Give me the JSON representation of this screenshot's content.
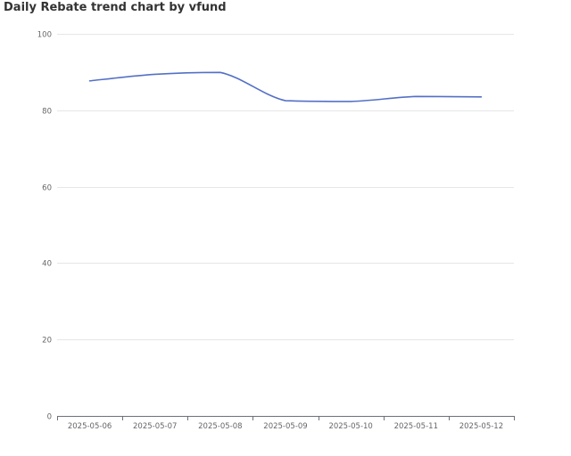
{
  "chart_data": {
    "type": "line",
    "title": "Daily Rebate trend chart by vfund",
    "xlabel": "",
    "ylabel": "",
    "categories": [
      "2025-05-06",
      "2025-05-07",
      "2025-05-08",
      "2025-05-09",
      "2025-05-10",
      "2025-05-11",
      "2025-05-12"
    ],
    "series": [
      {
        "values": [
          87.7,
          89.4,
          89.9,
          82.5,
          82.3,
          83.6,
          83.5
        ]
      }
    ],
    "ylim": [
      0,
      100
    ],
    "yticks": [
      0,
      20,
      40,
      60,
      80,
      100
    ],
    "grid": true,
    "legend": "none",
    "colors": {
      "line": "#5470c6",
      "grid": "#e6e6e6",
      "axis": "#6e7079",
      "label": "#666666",
      "title": "#333333"
    }
  }
}
